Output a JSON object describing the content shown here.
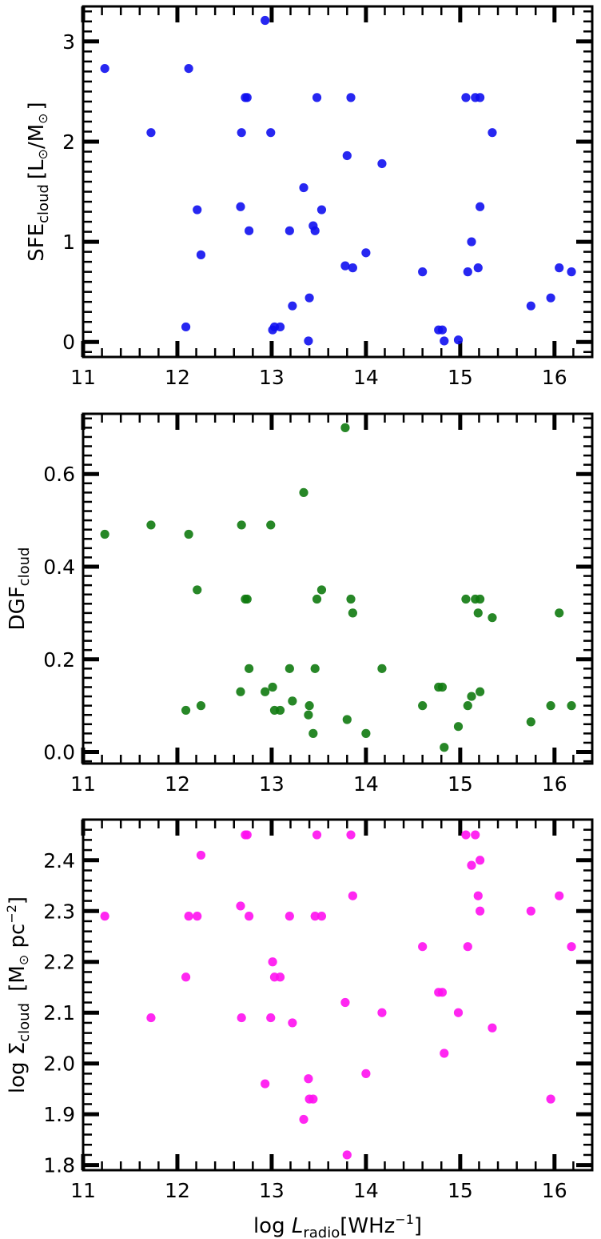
{
  "chart_data": [
    {
      "type": "scatter",
      "ylabel": {
        "main": "SFE",
        "sub": "cloud",
        "unit": "[L",
        "sun": "⊙",
        "slash": "/M",
        "close": "]"
      },
      "xlim": [
        11,
        16.4
      ],
      "ylim": [
        -0.15,
        3.35
      ],
      "xticks": [
        11,
        12,
        13,
        14,
        15,
        16
      ],
      "xtick_labels": [
        "11",
        "12",
        "13",
        "14",
        "15",
        "16"
      ],
      "yticks": [
        0,
        1,
        2,
        3
      ],
      "ytick_labels": [
        "0",
        "1",
        "2",
        "3"
      ],
      "ytick_minor_step": 0.1,
      "color": "#1010f0",
      "series": [
        {
          "x": [
            11.23,
            11.72,
            12.09,
            12.12,
            12.21,
            12.25,
            12.67,
            12.68,
            12.72,
            12.74,
            12.76,
            12.93,
            12.99,
            13.01,
            13.03,
            13.09,
            13.19,
            13.22,
            13.34,
            13.39,
            13.4,
            13.44,
            13.46,
            13.48,
            13.53,
            13.78,
            13.8,
            13.84,
            13.86,
            14.0,
            14.17,
            14.6,
            14.77,
            14.81,
            14.83,
            14.98,
            15.06,
            15.08,
            15.12,
            15.16,
            15.19,
            15.21,
            15.21,
            15.34,
            15.75,
            15.96,
            16.05,
            16.18
          ],
          "y": [
            2.73,
            2.09,
            0.15,
            2.73,
            1.32,
            0.87,
            1.35,
            2.09,
            2.44,
            2.44,
            1.11,
            3.21,
            2.09,
            0.12,
            0.15,
            0.15,
            1.11,
            0.36,
            1.54,
            0.01,
            0.44,
            1.16,
            1.11,
            2.44,
            1.32,
            0.76,
            1.86,
            2.44,
            0.74,
            0.89,
            1.78,
            0.7,
            0.12,
            0.12,
            0.01,
            0.02,
            2.44,
            0.7,
            1.0,
            2.44,
            0.74,
            1.35,
            2.44,
            2.09,
            0.36,
            0.44,
            0.74,
            0.7
          ]
        }
      ]
    },
    {
      "type": "scatter",
      "ylabel": {
        "main": "DGF",
        "sub": "cloud"
      },
      "xlim": [
        11,
        16.4
      ],
      "ylim": [
        -0.025,
        0.73
      ],
      "xticks": [
        11,
        12,
        13,
        14,
        15,
        16
      ],
      "xtick_labels": [
        "11",
        "12",
        "13",
        "14",
        "15",
        "16"
      ],
      "yticks": [
        0.0,
        0.2,
        0.4,
        0.6
      ],
      "ytick_labels": [
        "0.0",
        "0.2",
        "0.4",
        "0.6"
      ],
      "ytick_minor_step": 0.02,
      "color": "#0f7a0f",
      "series": [
        {
          "x": [
            11.23,
            11.72,
            12.09,
            12.12,
            12.21,
            12.25,
            12.67,
            12.68,
            12.72,
            12.74,
            12.76,
            12.93,
            12.99,
            13.01,
            13.03,
            13.09,
            13.19,
            13.22,
            13.34,
            13.39,
            13.4,
            13.44,
            13.46,
            13.48,
            13.53,
            13.78,
            13.8,
            13.84,
            13.86,
            14.0,
            14.17,
            14.6,
            14.77,
            14.81,
            14.83,
            14.98,
            15.06,
            15.08,
            15.12,
            15.16,
            15.19,
            15.21,
            15.21,
            15.34,
            15.75,
            15.96,
            16.05,
            16.18
          ],
          "y": [
            0.47,
            0.49,
            0.09,
            0.47,
            0.35,
            0.1,
            0.13,
            0.49,
            0.33,
            0.33,
            0.18,
            0.13,
            0.49,
            0.14,
            0.09,
            0.09,
            0.18,
            0.11,
            0.56,
            0.08,
            0.1,
            0.04,
            0.18,
            0.33,
            0.35,
            0.7,
            0.07,
            0.33,
            0.3,
            0.04,
            0.18,
            0.1,
            0.14,
            0.14,
            0.01,
            0.055,
            0.33,
            0.1,
            0.12,
            0.33,
            0.3,
            0.13,
            0.33,
            0.29,
            0.065,
            0.1,
            0.3,
            0.1
          ]
        }
      ]
    },
    {
      "type": "scatter",
      "ylabel": {
        "pre": "log ",
        "main": "Σ",
        "sub": "cloud",
        "unit": " [M",
        "sun": "⊙",
        "mid": " pc",
        "sup": "−2",
        "close": "]"
      },
      "xlabel": {
        "pre": "log ",
        "main": "L",
        "sub": "radio",
        "unit": "[WHz",
        "sup": "−1",
        "close": "]"
      },
      "xlim": [
        11,
        16.4
      ],
      "ylim": [
        1.79,
        2.48
      ],
      "xticks": [
        11,
        12,
        13,
        14,
        15,
        16
      ],
      "xtick_labels": [
        "11",
        "12",
        "13",
        "14",
        "15",
        "16"
      ],
      "yticks": [
        1.8,
        1.9,
        2.0,
        2.1,
        2.2,
        2.3,
        2.4
      ],
      "ytick_labels": [
        "1.8",
        "1.9",
        "2.0",
        "2.1",
        "2.2",
        "2.3",
        "2.4"
      ],
      "ytick_minor_step": 0.02,
      "color": "#ff10f0",
      "series": [
        {
          "x": [
            11.23,
            11.72,
            12.09,
            12.12,
            12.21,
            12.25,
            12.67,
            12.68,
            12.72,
            12.74,
            12.76,
            12.93,
            12.99,
            13.01,
            13.03,
            13.09,
            13.19,
            13.22,
            13.34,
            13.39,
            13.4,
            13.44,
            13.46,
            13.48,
            13.53,
            13.78,
            13.8,
            13.84,
            13.86,
            14.0,
            14.17,
            14.6,
            14.77,
            14.81,
            14.83,
            14.98,
            15.06,
            15.08,
            15.12,
            15.16,
            15.19,
            15.21,
            15.21,
            15.34,
            15.75,
            15.96,
            16.05,
            16.18
          ],
          "y": [
            2.29,
            2.09,
            2.17,
            2.29,
            2.29,
            2.41,
            2.31,
            2.09,
            2.45,
            2.45,
            2.29,
            1.96,
            2.09,
            2.2,
            2.17,
            2.17,
            2.29,
            2.08,
            1.89,
            1.97,
            1.93,
            1.93,
            2.29,
            2.45,
            2.29,
            2.12,
            1.82,
            2.45,
            2.33,
            1.98,
            2.1,
            2.23,
            2.14,
            2.14,
            2.02,
            2.1,
            2.45,
            2.23,
            2.39,
            2.45,
            2.33,
            2.4,
            2.3,
            2.07,
            2.3,
            1.93,
            2.33,
            2.23
          ]
        }
      ]
    }
  ]
}
